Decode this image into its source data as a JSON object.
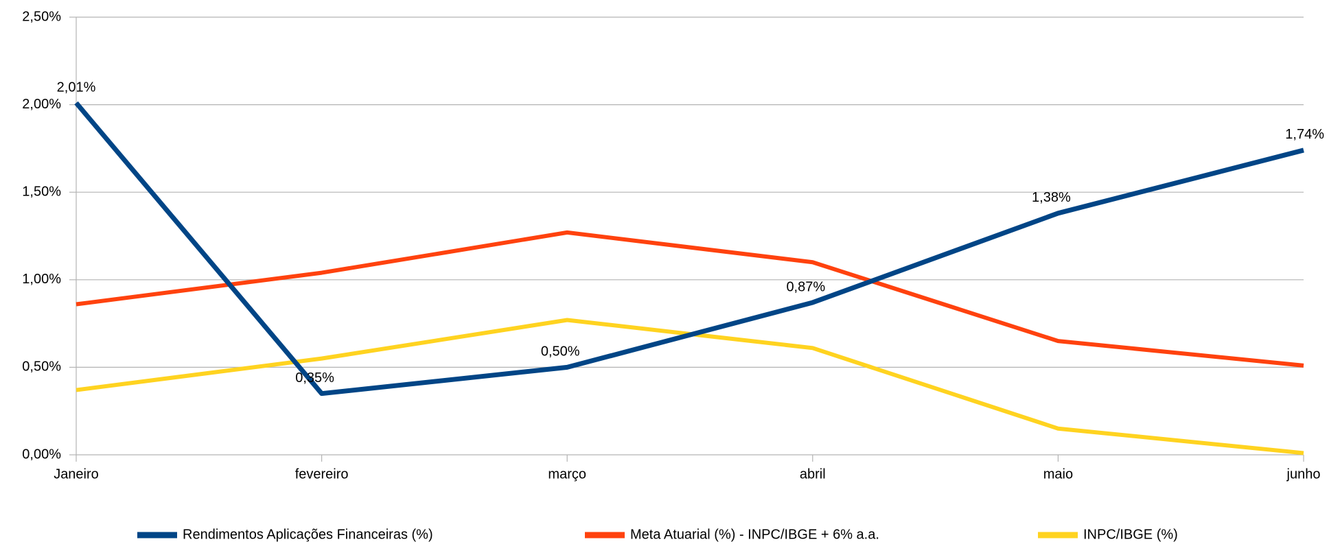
{
  "chart_data": {
    "type": "line",
    "categories": [
      "Janeiro",
      "fevereiro",
      "março",
      "abril",
      "maio",
      "junho"
    ],
    "series": [
      {
        "name": "Rendimentos Aplicações Financeiras (%)",
        "color": "#004586",
        "values": [
          2.01,
          0.35,
          0.5,
          0.87,
          1.38,
          1.74
        ],
        "value_labels": [
          "2,01%",
          "0,35%",
          "0,50%",
          "0,87%",
          "1,38%",
          "1,74%"
        ]
      },
      {
        "name": "Meta Atuarial (%) - INPC/IBGE + 6% a.a.",
        "color": "#ff420e",
        "values": [
          0.86,
          1.04,
          1.27,
          1.1,
          0.65,
          0.51
        ]
      },
      {
        "name": "INPC/IBGE (%)",
        "color": "#ffd320",
        "values": [
          0.37,
          0.55,
          0.77,
          0.61,
          0.15,
          0.01
        ]
      }
    ],
    "ylim": [
      0,
      2.5
    ],
    "yticks": [
      {
        "value": 0,
        "label": "0,00%"
      },
      {
        "value": 0.5,
        "label": "0,50%"
      },
      {
        "value": 1,
        "label": "1,00%"
      },
      {
        "value": 1.5,
        "label": "1,50%"
      },
      {
        "value": 2,
        "label": "2,00%"
      },
      {
        "value": 2.5,
        "label": "2,50%"
      }
    ],
    "grid": true,
    "legend": "bottom"
  }
}
